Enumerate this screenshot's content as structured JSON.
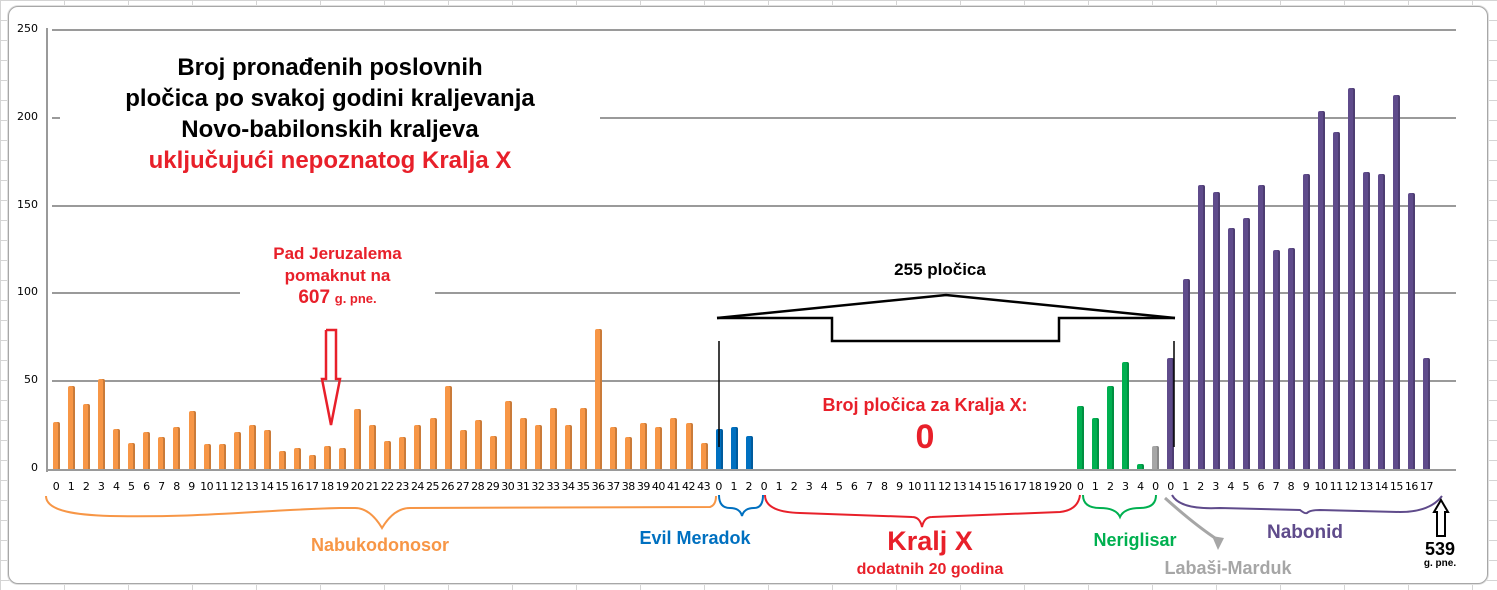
{
  "chart_data": {
    "type": "bar",
    "title": "Broj pronađenih poslovnih pločica po svakoj godini kraljevanja Novo-babilonskih kraljeva",
    "subtitle": "uključujući nepoznatog Kralja X",
    "xlabel": "",
    "ylabel": "",
    "ylim": [
      0,
      250
    ],
    "yticks": [
      0,
      50,
      100,
      150,
      200,
      250
    ],
    "grid": true,
    "legend": "none",
    "series": [
      {
        "name": "Nabukodonosor",
        "color": "#f79646",
        "x": [
          0,
          1,
          2,
          3,
          4,
          5,
          6,
          7,
          8,
          9,
          10,
          11,
          12,
          13,
          14,
          15,
          16,
          17,
          18,
          19,
          20,
          21,
          22,
          23,
          24,
          25,
          26,
          27,
          28,
          29,
          30,
          31,
          32,
          33,
          34,
          35,
          36,
          37,
          38,
          39,
          40,
          41,
          42,
          43
        ],
        "values": [
          27,
          47,
          37,
          51,
          23,
          15,
          21,
          18,
          24,
          33,
          14,
          14,
          21,
          25,
          22,
          10,
          12,
          8,
          13,
          12,
          34,
          25,
          16,
          18,
          25,
          29,
          47,
          22,
          28,
          19,
          39,
          29,
          25,
          35,
          25,
          35,
          80,
          24,
          18,
          26,
          24,
          29,
          26,
          15
        ]
      },
      {
        "name": "Evil Meradok",
        "color": "#0070c0",
        "x": [
          0,
          1,
          2
        ],
        "values": [
          23,
          24,
          19
        ]
      },
      {
        "name": "Kralj X",
        "color": "#e8202a",
        "x": [
          0,
          1,
          2,
          3,
          4,
          5,
          6,
          7,
          8,
          9,
          10,
          11,
          12,
          13,
          14,
          15,
          16,
          17,
          18,
          19,
          20
        ],
        "values": [
          0,
          0,
          0,
          0,
          0,
          0,
          0,
          0,
          0,
          0,
          0,
          0,
          0,
          0,
          0,
          0,
          0,
          0,
          0,
          0,
          0
        ]
      },
      {
        "name": "Neriglisar",
        "color": "#00b050",
        "x": [
          0,
          1,
          2,
          3,
          4
        ],
        "values": [
          36,
          29,
          47,
          61,
          3
        ]
      },
      {
        "name": "Labaši-Marduk",
        "color": "#a6a6a6",
        "x": [
          0
        ],
        "values": [
          13
        ]
      },
      {
        "name": "Nabonid",
        "color": "#5f4b8b",
        "x": [
          0,
          1,
          2,
          3,
          4,
          5,
          6,
          7,
          8,
          9,
          10,
          11,
          12,
          13,
          14,
          15,
          16,
          17
        ],
        "values": [
          63,
          108,
          162,
          158,
          137,
          143,
          162,
          125,
          126,
          168,
          204,
          192,
          217,
          169,
          168,
          213,
          157,
          63
        ]
      }
    ],
    "annotations": [
      "Pad Jeruzalema pomaknut na 607 g. pne.",
      "255 pločica",
      "Broj pločica za Kralja X: 0",
      "Kralj X dodatnih 20 godina",
      "539 g. pne."
    ]
  },
  "title": {
    "line1": "Broj pronađenih poslovnih",
    "line2": "pločica po svakoj godini kraljevanja",
    "line3": "Novo-babilonskih kraljeva",
    "line4": "uključujući nepoznatog Kralja X"
  },
  "annotations": {
    "jerusalem_line1": "Pad Jeruzalema",
    "jerusalem_line2": "pomaknut na",
    "jerusalem_year": "607",
    "jerusalem_suffix": "g. pne.",
    "tablets_moved": "255 pločica",
    "king_x_count_label": "Broj pločica za Kralja X:",
    "king_x_count": "0",
    "end_year": "539",
    "end_suffix": "g. pne."
  },
  "kings": {
    "nabukodonosor": "Nabukodonosor",
    "evil_meradok": "Evil Meradok",
    "kralj_x": "Kralj X",
    "kralj_x_sub": "dodatnih 20 godina",
    "neriglisar": "Neriglisar",
    "labasi": "Labaši-Marduk",
    "nabonid": "Nabonid"
  }
}
